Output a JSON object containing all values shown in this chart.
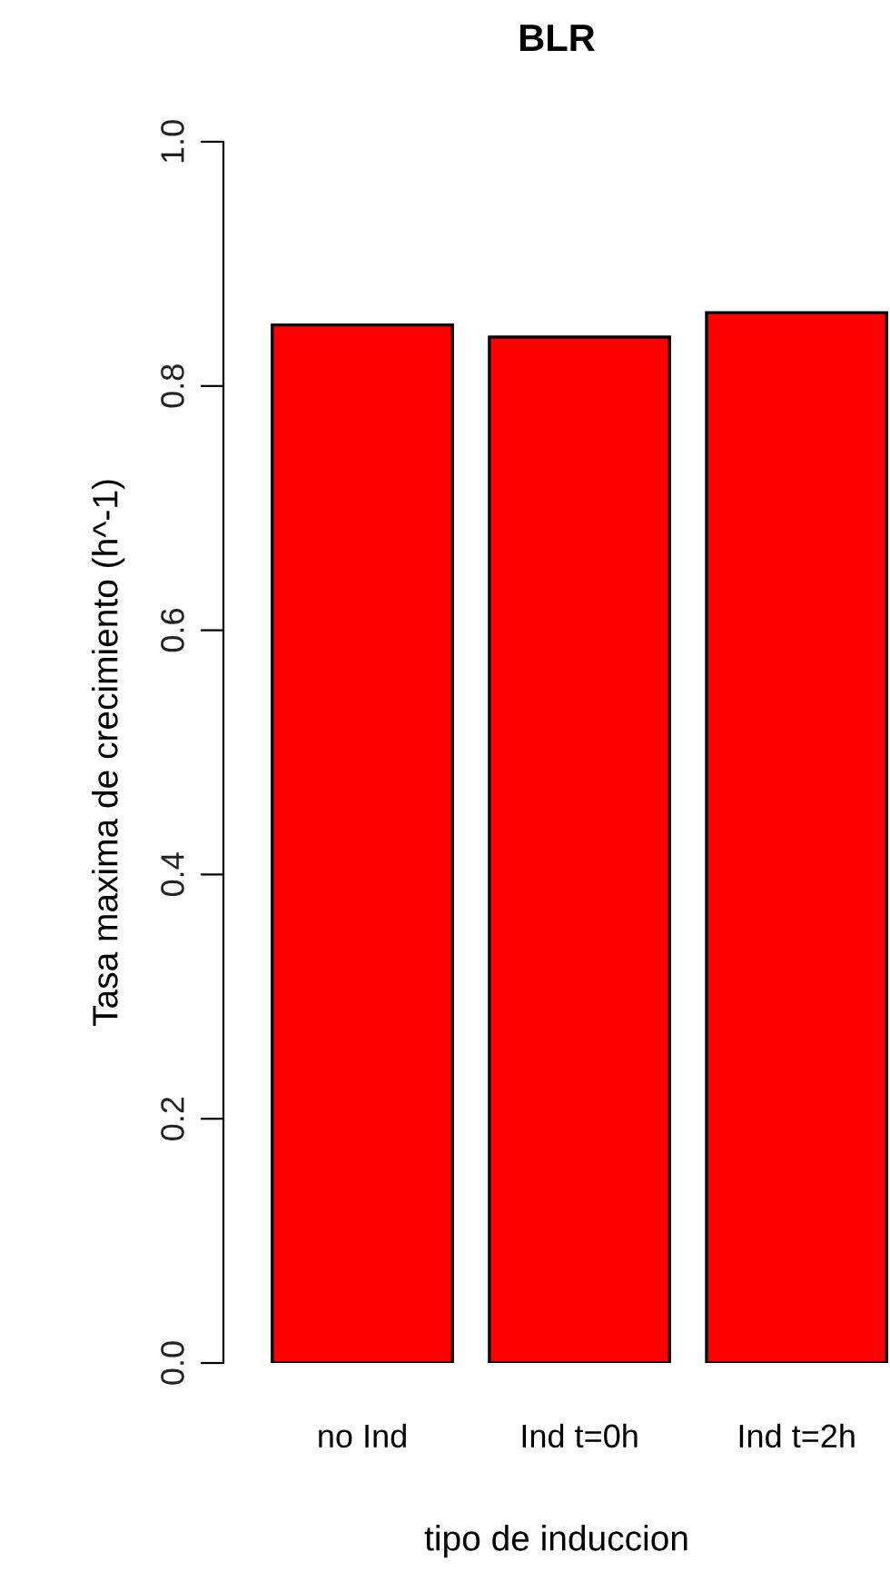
{
  "chart_data": {
    "type": "bar",
    "title": "BLR",
    "xlabel": "tipo de induccion",
    "ylabel": "Tasa maxima de crecimiento (h^-1)",
    "categories": [
      "no Ind",
      "Ind t=0h",
      "Ind t=2h"
    ],
    "values": [
      0.85,
      0.84,
      0.86
    ],
    "color": "#ff0000",
    "ylim": [
      0,
      1.0
    ],
    "yticks": [
      {
        "value": 0,
        "label": "0.0"
      },
      {
        "value": 0.2,
        "label": "0.2"
      },
      {
        "value": 0.4,
        "label": "0.4"
      },
      {
        "value": 0.6,
        "label": "0.6"
      },
      {
        "value": 0.8,
        "label": "0.8"
      },
      {
        "value": 1.0,
        "label": "1.0"
      }
    ],
    "grid": false
  }
}
